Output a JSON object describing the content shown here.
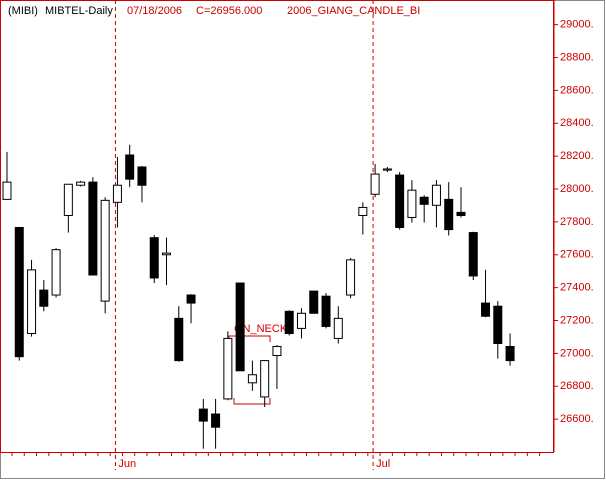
{
  "chart_data": {
    "type": "candlestick",
    "header": [
      "(MIBI)",
      "MIBTEL-Daily",
      "07/18/2006",
      "C=26956.000",
      "2006_GIANG_CANDLE_BI"
    ],
    "annotation": "ON_NECK",
    "categories": [
      null,
      null,
      null,
      null,
      null,
      null,
      null,
      null,
      null,
      "Jun",
      null,
      null,
      null,
      null,
      null,
      null,
      null,
      null,
      null,
      null,
      null,
      null,
      null,
      null,
      null,
      null,
      null,
      null,
      null,
      null,
      "Jul",
      null,
      null,
      null,
      null,
      null,
      null,
      null,
      null,
      null,
      null,
      null
    ],
    "open": [
      27937,
      27766,
      27121,
      27385,
      27355,
      27839,
      28023,
      28042,
      27318,
      27919,
      28207,
      28134,
      27704,
      27600,
      27213,
      27355,
      26661,
      26631,
      26723,
      27428,
      26821,
      26735,
      26987,
      27256,
      27152,
      27379,
      27348,
      27091,
      27355,
      27839,
      27968,
      28115,
      28085,
      27827,
      27950,
      27901,
      27937,
      27858,
      27735,
      27306,
      27287,
      27042
    ],
    "high": [
      28226,
      27766,
      27569,
      27446,
      27640,
      28029,
      28050,
      28072,
      27950,
      28195,
      28269,
      28140,
      27720,
      27704,
      27287,
      27360,
      26723,
      26723,
      27134,
      27428,
      26956,
      26960,
      27050,
      27262,
      27275,
      27379,
      27367,
      27287,
      27580,
      27919,
      28152,
      28134,
      28103,
      28054,
      27962,
      28054,
      28042,
      28011,
      27740,
      27508,
      27318,
      27121
    ],
    "low": [
      27937,
      26956,
      27102,
      27256,
      27340,
      27735,
      28015,
      27477,
      27244,
      27766,
      28011,
      27919,
      27428,
      27416,
      26950,
      27183,
      26420,
      26420,
      26715,
      26894,
      26772,
      26674,
      26784,
      27109,
      27091,
      27244,
      27152,
      27060,
      27336,
      27723,
      27950,
      28103,
      27753,
      27796,
      27796,
      27766,
      27717,
      27827,
      27446,
      27220,
      26968,
      26925
    ],
    "close": [
      28042,
      26980,
      27508,
      27287,
      27631,
      28029,
      28042,
      27477,
      27931,
      28023,
      28060,
      28023,
      27459,
      27610,
      26956,
      27306,
      26588,
      26551,
      27091,
      26894,
      26870,
      26956,
      27042,
      27121,
      27244,
      27244,
      27164,
      27213,
      27569,
      27888,
      28091,
      28122,
      27766,
      27993,
      27907,
      28023,
      27753,
      27839,
      27471,
      27226,
      27060,
      26956
    ],
    "ylim": [
      26400,
      29150
    ],
    "yticks": [
      {
        "value": 26600,
        "label": "26600."
      },
      {
        "value": 26800,
        "label": "26800."
      },
      {
        "value": 27000,
        "label": "27000."
      },
      {
        "value": 27200,
        "label": "27200."
      },
      {
        "value": 27400,
        "label": "27400."
      },
      {
        "value": 27600,
        "label": "27600."
      },
      {
        "value": 27800,
        "label": "27800."
      },
      {
        "value": 28000,
        "label": "28000."
      },
      {
        "value": 28200,
        "label": "28200."
      },
      {
        "value": 28400,
        "label": "28400."
      },
      {
        "value": 28600,
        "label": "28600."
      },
      {
        "value": 28800,
        "label": "28800."
      },
      {
        "value": 29000,
        "label": "29000."
      }
    ]
  }
}
